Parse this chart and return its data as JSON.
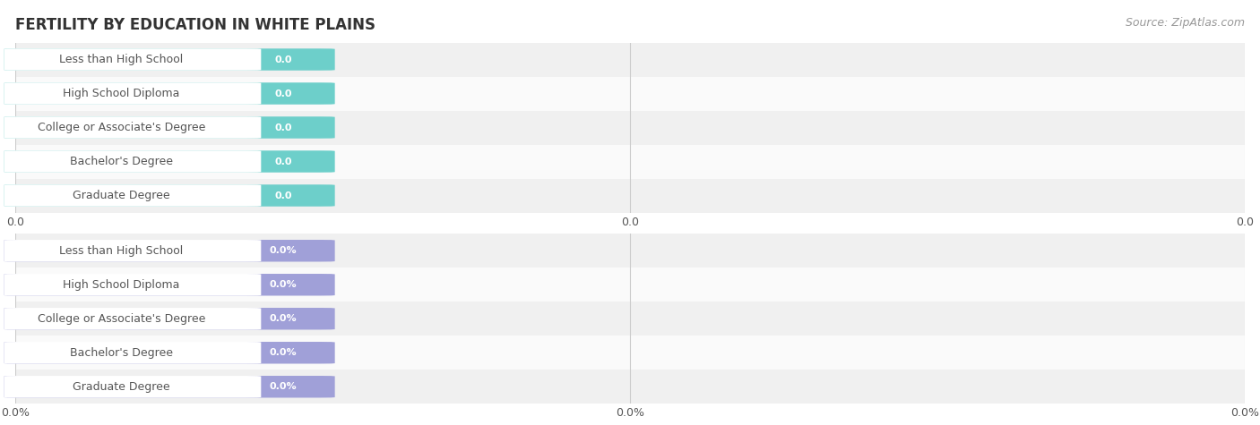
{
  "title": "FERTILITY BY EDUCATION IN WHITE PLAINS",
  "source": "Source: ZipAtlas.com",
  "categories": [
    "Less than High School",
    "High School Diploma",
    "College or Associate's Degree",
    "Bachelor's Degree",
    "Graduate Degree"
  ],
  "values_top": [
    0.0,
    0.0,
    0.0,
    0.0,
    0.0
  ],
  "values_bottom": [
    0.0,
    0.0,
    0.0,
    0.0,
    0.0
  ],
  "bar_color_top": "#6dcfca",
  "bar_color_bottom": "#a0a0d8",
  "label_bg_color": "#ffffff",
  "row_bg_even": "#f0f0f0",
  "row_bg_odd": "#fafafa",
  "outer_bg": "#e8e8e8",
  "grid_color": "#cccccc",
  "title_color": "#333333",
  "source_color": "#999999",
  "label_color": "#555555",
  "title_fontsize": 12,
  "source_fontsize": 9,
  "label_fontsize": 9,
  "value_fontsize": 8,
  "tick_fontsize": 9,
  "xtick_labels_top": [
    "0.0",
    "0.0",
    "0.0"
  ],
  "xtick_labels_bottom": [
    "0.0%",
    "0.0%",
    "0.0%"
  ]
}
